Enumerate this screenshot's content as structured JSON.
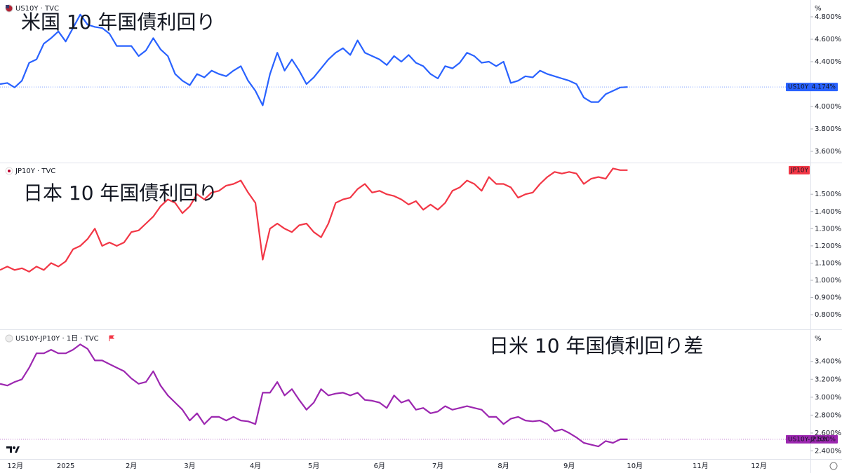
{
  "chart_data": {
    "type": "line",
    "categories": [
      null,
      "12月",
      null,
      null,
      null,
      null,
      null,
      null,
      null,
      "2025",
      null,
      null,
      null,
      null,
      null,
      null,
      null,
      null,
      "2月",
      null,
      null,
      null,
      null,
      null,
      null,
      null,
      "3月",
      null,
      null,
      null,
      null,
      null,
      null,
      null,
      null,
      "4月",
      null,
      null,
      null,
      null,
      null,
      null,
      null,
      "5月",
      null,
      null,
      null,
      null,
      null,
      null,
      null,
      null,
      "6月",
      null,
      null,
      null,
      null,
      null,
      null,
      null,
      "7月",
      null,
      null,
      null,
      null,
      null,
      null,
      null,
      null,
      "8月",
      null,
      null,
      null,
      null,
      null,
      null,
      null,
      null,
      "9月",
      null,
      null,
      null,
      null,
      null,
      null,
      null,
      null,
      "10月",
      null,
      null,
      null,
      null,
      null,
      null,
      null,
      null,
      "11月",
      null,
      null,
      null,
      null,
      null,
      null,
      null,
      "12月"
    ],
    "series": [
      {
        "name": "US10Y · TVC",
        "title": "米国 10 年国債利回り",
        "color": "#2962ff",
        "unit": "%",
        "last_label": "US10Y",
        "last_value_label": "4.174%",
        "ylim": [
          3.5,
          4.95
        ],
        "yticks": [
          {
            "value": 4.8,
            "label": "4.800%"
          },
          {
            "value": 4.6,
            "label": "4.600%"
          },
          {
            "value": 4.4,
            "label": "4.400%"
          },
          {
            "value": 4.0,
            "label": "4.000%"
          },
          {
            "value": 3.8,
            "label": "3.800%"
          },
          {
            "value": 3.6,
            "label": "3.600%"
          }
        ],
        "values": [
          4.2,
          4.21,
          4.17,
          4.23,
          4.39,
          4.42,
          4.56,
          4.61,
          4.67,
          4.58,
          4.7,
          4.82,
          4.73,
          4.71,
          4.7,
          4.65,
          4.54,
          4.54,
          4.54,
          4.45,
          4.5,
          4.61,
          4.51,
          4.45,
          4.29,
          4.23,
          4.19,
          4.29,
          4.26,
          4.32,
          4.29,
          4.27,
          4.32,
          4.36,
          4.23,
          4.14,
          4.01,
          4.29,
          4.48,
          4.32,
          4.42,
          4.32,
          4.2,
          4.26,
          4.34,
          4.42,
          4.48,
          4.52,
          4.46,
          4.59,
          4.48,
          4.45,
          4.42,
          4.37,
          4.45,
          4.4,
          4.46,
          4.39,
          4.36,
          4.29,
          4.25,
          4.36,
          4.34,
          4.39,
          4.48,
          4.45,
          4.39,
          4.4,
          4.36,
          4.4,
          4.21,
          4.23,
          4.27,
          4.26,
          4.32,
          4.29,
          4.27,
          4.25,
          4.23,
          4.2,
          4.08,
          4.04,
          4.04,
          4.11,
          4.14,
          4.17,
          4.174,
          null,
          null,
          null,
          null,
          null,
          null,
          null,
          null,
          null,
          null,
          null,
          null,
          null,
          null,
          null,
          null,
          null,
          null
        ]
      },
      {
        "name": "JP10Y · TVC",
        "title": "日本 10 年国債利回り",
        "color": "#f23645",
        "last_label": "JP10Y",
        "ylim": [
          0.715,
          1.68
        ],
        "yticks": [
          {
            "value": 1.5,
            "label": "1.500%"
          },
          {
            "value": 1.4,
            "label": "1.400%"
          },
          {
            "value": 1.3,
            "label": "1.300%"
          },
          {
            "value": 1.2,
            "label": "1.200%"
          },
          {
            "value": 1.1,
            "label": "1.100%"
          },
          {
            "value": 1.0,
            "label": "1.000%"
          },
          {
            "value": 0.9,
            "label": "0.900%"
          },
          {
            "value": 0.8,
            "label": "0.800%"
          }
        ],
        "values": [
          1.06,
          1.08,
          1.06,
          1.07,
          1.05,
          1.08,
          1.06,
          1.1,
          1.08,
          1.11,
          1.18,
          1.2,
          1.24,
          1.3,
          1.2,
          1.22,
          1.2,
          1.22,
          1.28,
          1.29,
          1.33,
          1.37,
          1.43,
          1.47,
          1.45,
          1.39,
          1.43,
          1.5,
          1.47,
          1.51,
          1.52,
          1.55,
          1.56,
          1.58,
          1.51,
          1.45,
          1.12,
          1.3,
          1.33,
          1.3,
          1.28,
          1.32,
          1.33,
          1.28,
          1.25,
          1.33,
          1.45,
          1.47,
          1.48,
          1.53,
          1.56,
          1.51,
          1.52,
          1.5,
          1.49,
          1.47,
          1.44,
          1.46,
          1.41,
          1.44,
          1.41,
          1.45,
          1.52,
          1.54,
          1.58,
          1.56,
          1.52,
          1.6,
          1.56,
          1.56,
          1.54,
          1.48,
          1.5,
          1.51,
          1.56,
          1.6,
          1.63,
          1.62,
          1.63,
          1.62,
          1.56,
          1.59,
          1.6,
          1.59,
          1.65,
          1.64,
          1.64,
          null,
          null,
          null,
          null,
          null,
          null,
          null,
          null,
          null,
          null,
          null,
          null,
          null,
          null,
          null,
          null,
          null,
          null
        ]
      },
      {
        "name": "US10Y-JP10Y · 1日 · TVC",
        "title": "日米 10 年国債利回り差",
        "color": "#9c27b0",
        "unit": "%",
        "last_label": "US10Y-JP10Y",
        "last_value_label": "2.530%",
        "ylim": [
          2.31,
          3.75
        ],
        "yticks": [
          {
            "value": 3.4,
            "label": "3.400%"
          },
          {
            "value": 3.2,
            "label": "3.200%"
          },
          {
            "value": 3.0,
            "label": "3.000%"
          },
          {
            "value": 2.8,
            "label": "2.800%"
          },
          {
            "value": 2.6,
            "label": "2.600%"
          },
          {
            "value": 2.4,
            "label": "2.400%"
          }
        ],
        "values": [
          3.15,
          3.13,
          3.17,
          3.2,
          3.33,
          3.49,
          3.49,
          3.53,
          3.49,
          3.49,
          3.53,
          3.59,
          3.54,
          3.41,
          3.41,
          3.37,
          3.33,
          3.29,
          3.21,
          3.15,
          3.17,
          3.29,
          3.13,
          3.02,
          2.94,
          2.86,
          2.74,
          2.82,
          2.7,
          2.78,
          2.78,
          2.74,
          2.78,
          2.74,
          2.73,
          2.7,
          3.05,
          3.05,
          3.17,
          3.02,
          3.09,
          2.97,
          2.86,
          2.94,
          3.09,
          3.02,
          3.04,
          3.05,
          3.02,
          3.05,
          2.97,
          2.96,
          2.94,
          2.88,
          3.02,
          2.94,
          2.97,
          2.86,
          2.88,
          2.82,
          2.84,
          2.9,
          2.86,
          2.88,
          2.9,
          2.88,
          2.86,
          2.78,
          2.78,
          2.7,
          2.76,
          2.78,
          2.74,
          2.73,
          2.74,
          2.7,
          2.62,
          2.64,
          2.6,
          2.55,
          2.49,
          2.47,
          2.45,
          2.51,
          2.49,
          2.53,
          2.53,
          null,
          null,
          null,
          null,
          null,
          null,
          null,
          null,
          null,
          null,
          null,
          null,
          null,
          null,
          null,
          null,
          null,
          null
        ]
      }
    ]
  }
}
